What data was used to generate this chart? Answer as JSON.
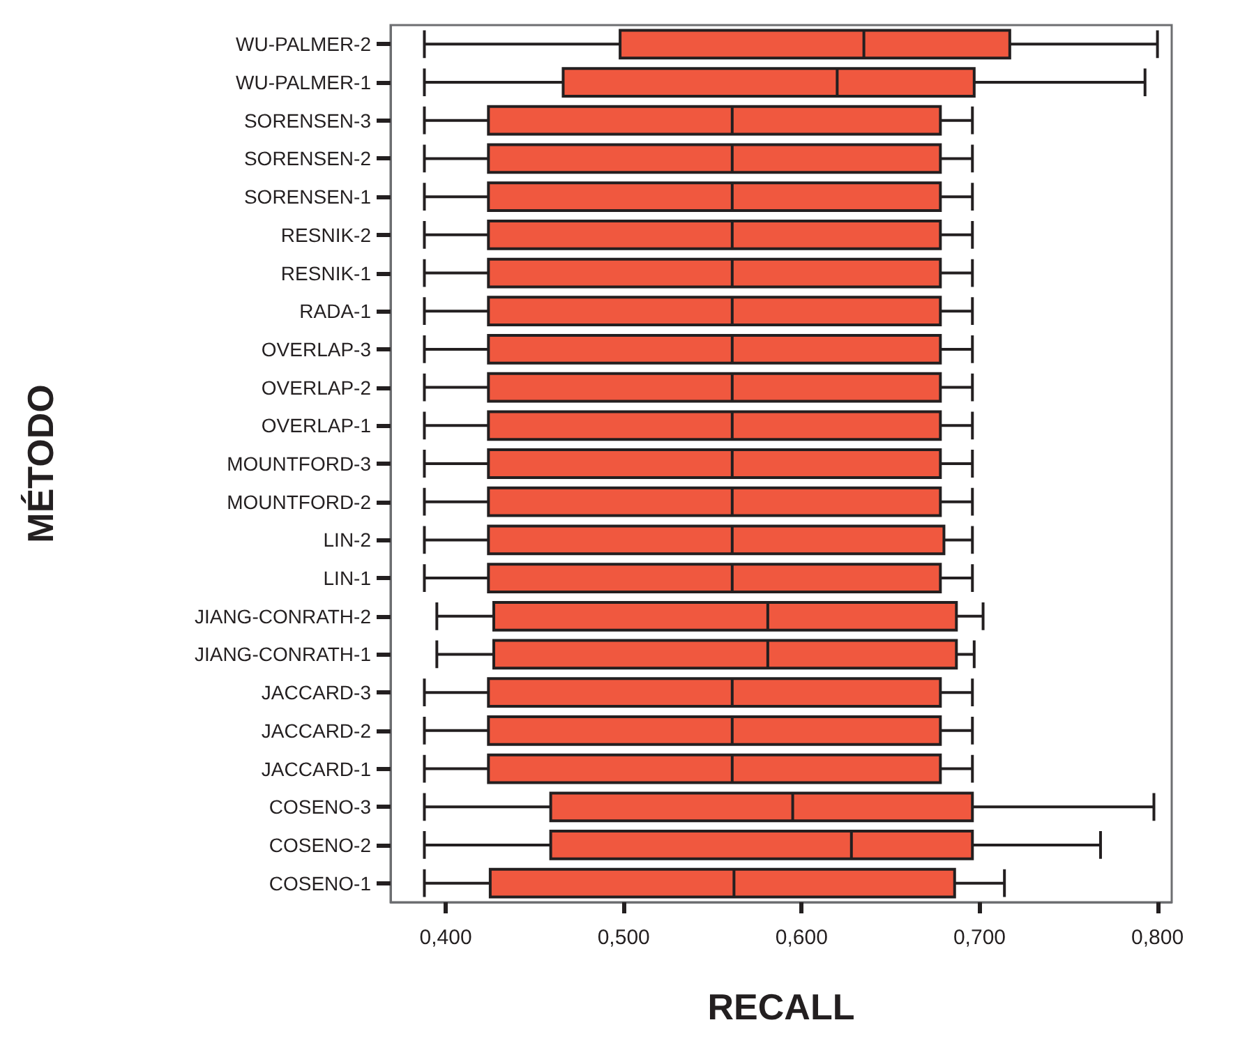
{
  "chart_data": {
    "type": "box",
    "orientation": "horizontal",
    "xlabel": "RECALL",
    "ylabel": "MÉTODO",
    "categories": [
      "WU-PALMER-2",
      "WU-PALMER-1",
      "SORENSEN-3",
      "SORENSEN-2",
      "SORENSEN-1",
      "RESNIK-2",
      "RESNIK-1",
      "RADA-1",
      "OVERLAP-3",
      "OVERLAP-2",
      "OVERLAP-1",
      "MOUNTFORD-3",
      "MOUNTFORD-2",
      "LIN-2",
      "LIN-1",
      "JIANG-CONRATH-2",
      "JIANG-CONRATH-1",
      "JACCARD-3",
      "JACCARD-2",
      "JACCARD-1",
      "COSENO-3",
      "COSENO-2",
      "COSENO-1"
    ],
    "color": "#f0583f",
    "boxes": [
      {
        "low": 0.388,
        "q1": 0.498,
        "median": 0.635,
        "q3": 0.717,
        "high": 0.8
      },
      {
        "low": 0.388,
        "q1": 0.466,
        "median": 0.62,
        "q3": 0.697,
        "high": 0.793
      },
      {
        "low": 0.388,
        "q1": 0.424,
        "median": 0.561,
        "q3": 0.678,
        "high": 0.696
      },
      {
        "low": 0.388,
        "q1": 0.424,
        "median": 0.561,
        "q3": 0.678,
        "high": 0.696
      },
      {
        "low": 0.388,
        "q1": 0.424,
        "median": 0.561,
        "q3": 0.678,
        "high": 0.696
      },
      {
        "low": 0.388,
        "q1": 0.424,
        "median": 0.561,
        "q3": 0.678,
        "high": 0.696
      },
      {
        "low": 0.388,
        "q1": 0.424,
        "median": 0.561,
        "q3": 0.678,
        "high": 0.696
      },
      {
        "low": 0.388,
        "q1": 0.424,
        "median": 0.561,
        "q3": 0.678,
        "high": 0.696
      },
      {
        "low": 0.388,
        "q1": 0.424,
        "median": 0.561,
        "q3": 0.678,
        "high": 0.696
      },
      {
        "low": 0.388,
        "q1": 0.424,
        "median": 0.561,
        "q3": 0.678,
        "high": 0.696
      },
      {
        "low": 0.388,
        "q1": 0.424,
        "median": 0.561,
        "q3": 0.678,
        "high": 0.696
      },
      {
        "low": 0.388,
        "q1": 0.424,
        "median": 0.561,
        "q3": 0.678,
        "high": 0.696
      },
      {
        "low": 0.388,
        "q1": 0.424,
        "median": 0.561,
        "q3": 0.678,
        "high": 0.696
      },
      {
        "low": 0.388,
        "q1": 0.424,
        "median": 0.561,
        "q3": 0.68,
        "high": 0.696
      },
      {
        "low": 0.388,
        "q1": 0.424,
        "median": 0.561,
        "q3": 0.678,
        "high": 0.696
      },
      {
        "low": 0.395,
        "q1": 0.427,
        "median": 0.581,
        "q3": 0.687,
        "high": 0.702
      },
      {
        "low": 0.395,
        "q1": 0.427,
        "median": 0.581,
        "q3": 0.687,
        "high": 0.697
      },
      {
        "low": 0.388,
        "q1": 0.424,
        "median": 0.561,
        "q3": 0.678,
        "high": 0.696
      },
      {
        "low": 0.388,
        "q1": 0.424,
        "median": 0.561,
        "q3": 0.678,
        "high": 0.696
      },
      {
        "low": 0.388,
        "q1": 0.424,
        "median": 0.561,
        "q3": 0.678,
        "high": 0.696
      },
      {
        "low": 0.388,
        "q1": 0.459,
        "median": 0.595,
        "q3": 0.696,
        "high": 0.798
      },
      {
        "low": 0.388,
        "q1": 0.459,
        "median": 0.628,
        "q3": 0.696,
        "high": 0.768
      },
      {
        "low": 0.388,
        "q1": 0.425,
        "median": 0.562,
        "q3": 0.686,
        "high": 0.714
      }
    ],
    "xlim": [
      0.369,
      0.808
    ],
    "xticks": [
      {
        "value": 0.4,
        "label": "0,400"
      },
      {
        "value": 0.5,
        "label": "0,500"
      },
      {
        "value": 0.6,
        "label": "0,600"
      },
      {
        "value": 0.7,
        "label": "0,700"
      },
      {
        "value": 0.8,
        "label": "0,800"
      }
    ]
  }
}
